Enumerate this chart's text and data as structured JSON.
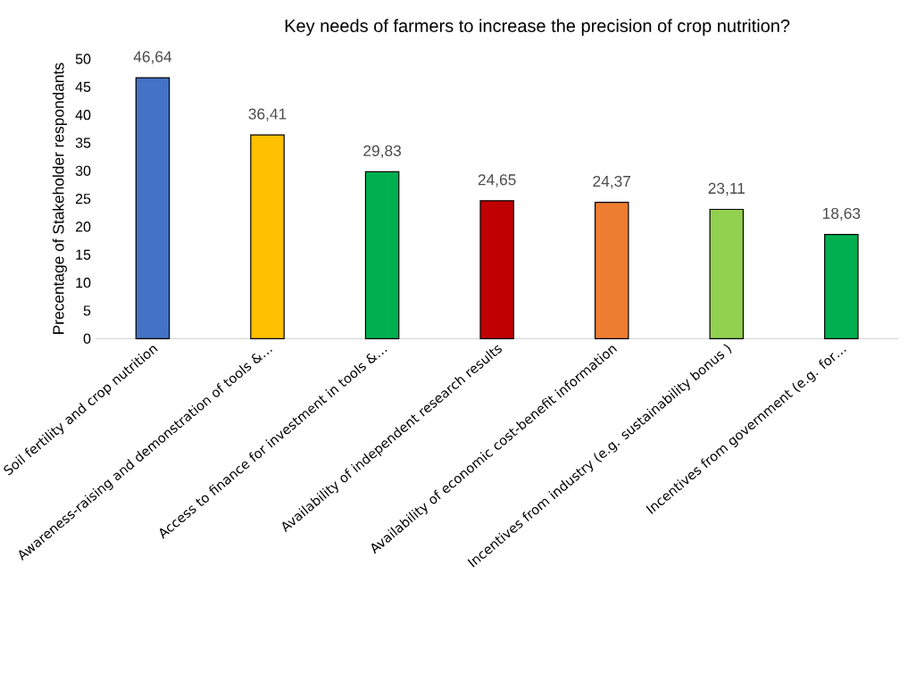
{
  "chart_data": {
    "type": "bar",
    "title": "Key needs of farmers to increase the precision of crop nutrition?",
    "ylabel": "Precentage of Stakeholder respondants",
    "categories": [
      "Soil fertility and crop nutrition",
      "Awareness-raising and demonstration of tools &…",
      "Access to finance for investment in tools &…",
      "Availability of independent research results",
      "Availability of economic cost-benefit information",
      "Incentives from industry (e.g. sustainability bonus )",
      "Incentives from government (e.g. for…"
    ],
    "values": [
      46.64,
      36.41,
      29.83,
      24.65,
      24.37,
      23.11,
      18.63
    ],
    "value_labels": [
      "46,64",
      "36,41",
      "29,83",
      "24,65",
      "24,37",
      "23,11",
      "18,63"
    ],
    "colors": [
      "#4472c4",
      "#ffc000",
      "#00b050",
      "#c00000",
      "#ed7d31",
      "#92d050",
      "#00b050"
    ],
    "ylim": [
      0,
      50
    ],
    "yticks": [
      0,
      5,
      10,
      15,
      20,
      25,
      30,
      35,
      40,
      45,
      50
    ],
    "grid": false
  }
}
